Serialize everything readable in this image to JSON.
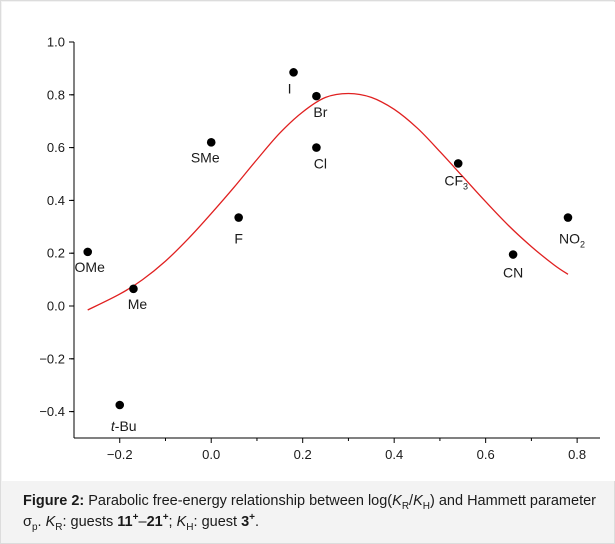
{
  "chart_data": {
    "type": "scatter",
    "title": "",
    "xlabel": "",
    "ylabel": "",
    "xlim": [
      -0.3,
      0.85
    ],
    "ylim": [
      -0.5,
      1.0
    ],
    "x_ticks": [
      "-0.2",
      "0.0",
      "0.2",
      "0.4",
      "0.6",
      "0.8"
    ],
    "x_tick_values": [
      -0.2,
      0.0,
      0.2,
      0.4,
      0.6,
      0.8
    ],
    "y_ticks": [
      "1.0",
      "0.8",
      "0.6",
      "0.4",
      "0.2",
      "0.0",
      "-0.2",
      "-0.4"
    ],
    "y_tick_values": [
      1.0,
      0.8,
      0.6,
      0.4,
      0.2,
      0.0,
      -0.2,
      -0.4
    ],
    "grid": false,
    "points": [
      {
        "label": "OMe",
        "x": -0.27,
        "y": 0.205
      },
      {
        "label": "Me",
        "x": -0.17,
        "y": 0.065
      },
      {
        "label": "t-Bu",
        "x": -0.2,
        "y": -0.375
      },
      {
        "label": "SMe",
        "x": 0.0,
        "y": 0.62
      },
      {
        "label": "F",
        "x": 0.06,
        "y": 0.335
      },
      {
        "label": "I",
        "x": 0.18,
        "y": 0.885
      },
      {
        "label": "Br",
        "x": 0.23,
        "y": 0.795
      },
      {
        "label": "Cl",
        "x": 0.23,
        "y": 0.6
      },
      {
        "label": "CF3",
        "x": 0.54,
        "y": 0.54
      },
      {
        "label": "CN",
        "x": 0.66,
        "y": 0.195
      },
      {
        "label": "NO2",
        "x": 0.78,
        "y": 0.335
      }
    ],
    "fit_curve": {
      "color": "#e02020",
      "x": [
        -0.27,
        -0.2,
        -0.15,
        -0.1,
        -0.05,
        0.0,
        0.05,
        0.1,
        0.15,
        0.2,
        0.25,
        0.3,
        0.35,
        0.4,
        0.45,
        0.5,
        0.55,
        0.6,
        0.65,
        0.7,
        0.75,
        0.78
      ],
      "y": [
        -0.015,
        0.045,
        0.1,
        0.17,
        0.255,
        0.35,
        0.45,
        0.555,
        0.655,
        0.735,
        0.79,
        0.805,
        0.79,
        0.745,
        0.675,
        0.585,
        0.49,
        0.395,
        0.305,
        0.225,
        0.155,
        0.12
      ]
    },
    "point_color": "#000000"
  },
  "caption": {
    "label": "Figure 2:",
    "t1": " Parabolic free-energy relationship between log(",
    "k": "K",
    "r": "R",
    "slash": "/",
    "h": "H",
    "t2": ") and Hammett parameter σ",
    "p": "p",
    "t3": ". ",
    "t4": ": guests ",
    "g1": "11",
    "plus": "+",
    "dash": "–",
    "g2": "21",
    "t5": "; ",
    "t6": ": guest ",
    "g3": "3",
    "end": "."
  }
}
